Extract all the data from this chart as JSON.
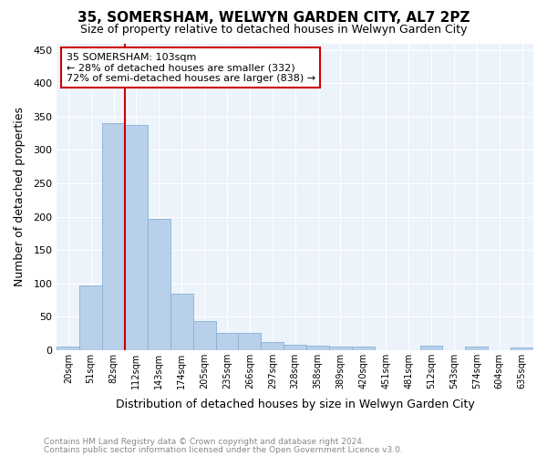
{
  "title": "35, SOMERSHAM, WELWYN GARDEN CITY, AL7 2PZ",
  "subtitle": "Size of property relative to detached houses in Welwyn Garden City",
  "xlabel": "Distribution of detached houses by size in Welwyn Garden City",
  "ylabel": "Number of detached properties",
  "footnote1": "Contains HM Land Registry data © Crown copyright and database right 2024.",
  "footnote2": "Contains public sector information licensed under the Open Government Licence v3.0.",
  "categories": [
    "20sqm",
    "51sqm",
    "82sqm",
    "112sqm",
    "143sqm",
    "174sqm",
    "205sqm",
    "235sqm",
    "266sqm",
    "297sqm",
    "328sqm",
    "358sqm",
    "389sqm",
    "420sqm",
    "451sqm",
    "481sqm",
    "512sqm",
    "543sqm",
    "574sqm",
    "604sqm",
    "635sqm"
  ],
  "values": [
    5,
    97,
    340,
    338,
    197,
    85,
    44,
    26,
    25,
    12,
    8,
    7,
    5,
    5,
    0,
    0,
    6,
    0,
    5,
    0,
    4
  ],
  "bar_color": "#b8d0ea",
  "bar_edge_color": "#8ab0d5",
  "vline_color": "#cc0000",
  "vline_pos": 3,
  "annotation_text": "35 SOMERSHAM: 103sqm\n← 28% of detached houses are smaller (332)\n72% of semi-detached houses are larger (838) →",
  "annotation_box_color": "#ffffff",
  "annotation_box_edge": "#cc0000",
  "ylim": [
    0,
    460
  ],
  "yticks": [
    0,
    50,
    100,
    150,
    200,
    250,
    300,
    350,
    400,
    450
  ],
  "bg_color": "#edf3fb",
  "grid_color": "#ffffff",
  "title_fontsize": 11,
  "subtitle_fontsize": 9,
  "ylabel_fontsize": 9,
  "xlabel_fontsize": 9,
  "tick_fontsize": 8,
  "footnote_fontsize": 6.5,
  "footnote_color": "#888888"
}
